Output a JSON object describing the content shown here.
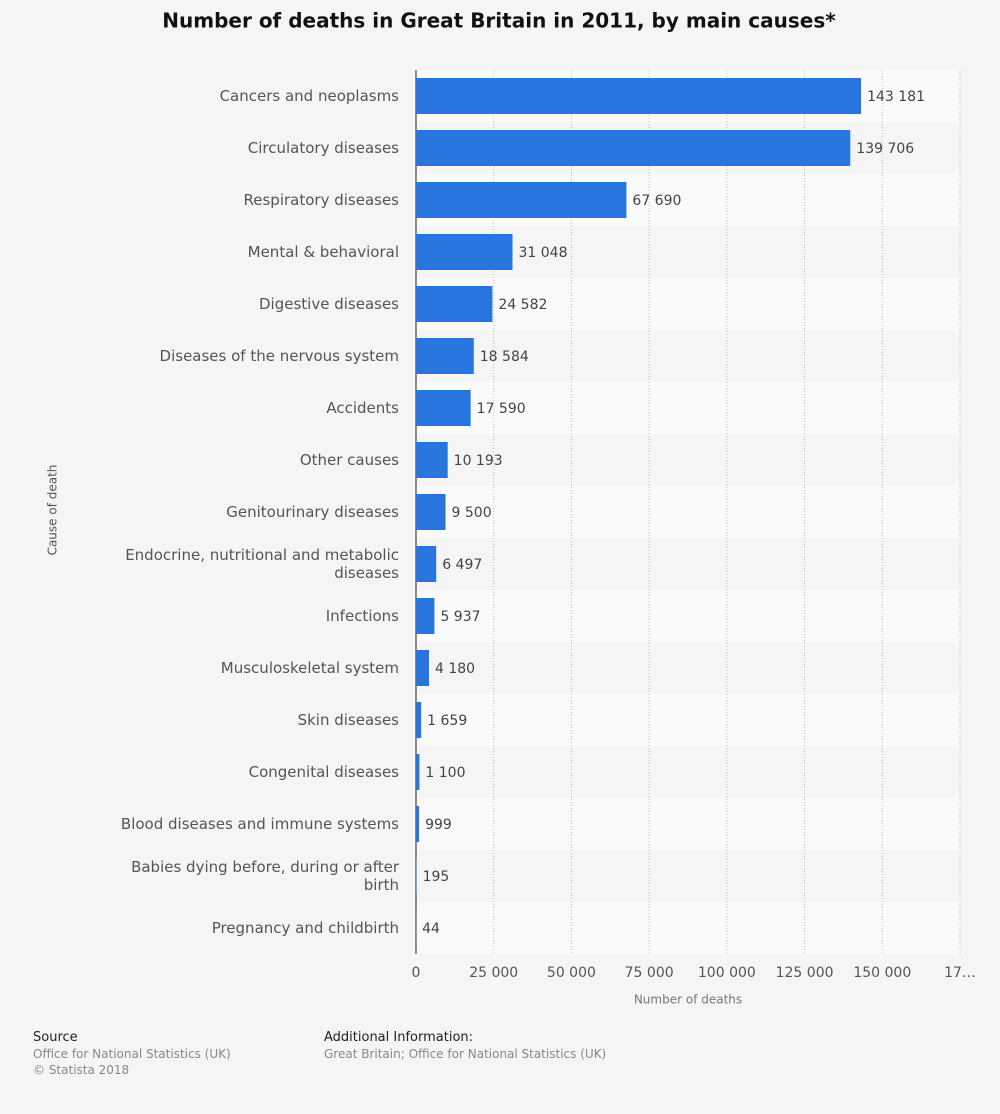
{
  "chart_data": {
    "type": "hbar",
    "title": "Number of deaths in Great Britain in 2011, by main causes*",
    "x_label": "Number of deaths",
    "y_label": "Cause of death",
    "categories": [
      "Cancers and neoplasms",
      "Circulatory diseases",
      "Respiratory diseases",
      "Mental & behavioral",
      "Digestive diseases",
      "Diseases of the nervous system",
      "Accidents",
      "Other causes",
      "Genitourinary diseases",
      "Endocrine, nutritional and metabolic diseases",
      "Infections",
      "Musculoskeletal system",
      "Skin diseases",
      "Congenital diseases",
      "Blood diseases and immune systems",
      "Babies dying before, during or after birth",
      "Pregnancy and childbirth"
    ],
    "values": [
      143181,
      139706,
      67690,
      31048,
      24582,
      18584,
      17590,
      10193,
      9500,
      6497,
      5937,
      4180,
      1659,
      1100,
      999,
      195,
      44
    ],
    "value_labels": [
      "143 181",
      "139 706",
      "67 690",
      "31 048",
      "24 582",
      "18 584",
      "17 590",
      "10 193",
      "9 500",
      "6 497",
      "5 937",
      "4 180",
      "1 659",
      "1 100",
      "999",
      "195",
      "44"
    ],
    "color": "#2876dd",
    "xlim": [
      0,
      175000
    ],
    "xticks": [
      0,
      {
        "value": 25000,
        "label": "25 000"
      },
      {
        "value": 50000,
        "label": "50 000"
      },
      {
        "value": 75000,
        "label": "75 000"
      },
      {
        "value": 100000,
        "label": "100 000"
      },
      {
        "value": 125000,
        "label": "125 000"
      },
      {
        "value": 150000,
        "label": "150 000"
      },
      {
        "value": 175000,
        "label": "17…"
      }
    ],
    "grid": true
  },
  "footer": {
    "source_title": "Source",
    "source_lines": [
      "Office for National Statistics (UK)",
      "© Statista 2018"
    ],
    "info_title": "Additional Information:",
    "info_text": "Great Britain; Office for National Statistics (UK)"
  }
}
